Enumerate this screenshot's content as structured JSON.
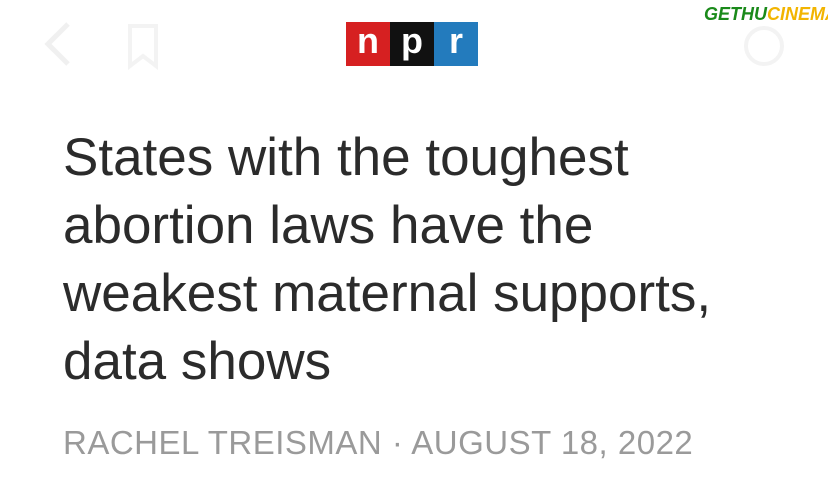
{
  "logo": {
    "letters": [
      "n",
      "p",
      "r"
    ]
  },
  "watermark": {
    "part1": "GETHU",
    "part2": "CINEMA"
  },
  "headline": "States with the toughest abortion laws have the weakest maternal supports, data shows",
  "byline": "RACHEL TREISMAN · AUGUST 18, 2022"
}
